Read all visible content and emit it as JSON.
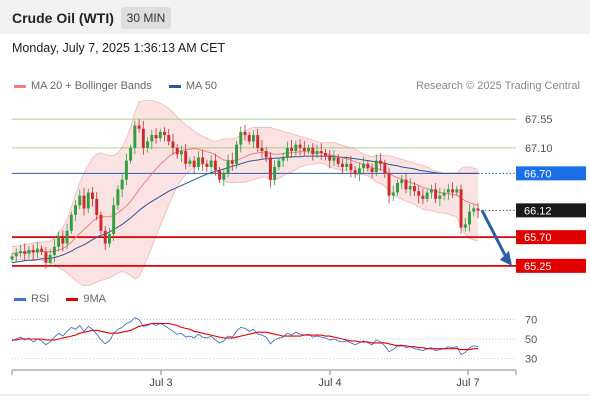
{
  "header": {
    "title": "Crude Oil (WTI)",
    "timeframe": "30 MIN"
  },
  "date_text": "Monday, July 7, 2025 1:36:13 AM CET",
  "legend": {
    "ma20_bb": {
      "label": "MA 20 + Bollinger Bands",
      "color": "#f08080"
    },
    "ma50": {
      "label": "MA 50",
      "color": "#2f5597"
    }
  },
  "credit": "Research © 2025 Trading Central",
  "rsi_legend": {
    "rsi": {
      "label": "RSI",
      "color": "#4472c4"
    },
    "ma9": {
      "label": "9MA",
      "color": "#e00000"
    }
  },
  "chart_data": [
    {
      "type": "line",
      "title": "Crude Oil (WTI)",
      "x_labels": [
        "Jul 3",
        "Jul 4",
        "Jul 7"
      ],
      "ylim": [
        64.95,
        67.85
      ],
      "levels": [
        {
          "value": 67.55,
          "label": "67.55",
          "kind": "resistance",
          "color": "#8fc46e"
        },
        {
          "value": 67.1,
          "label": "67.10",
          "kind": "resistance",
          "color": "#8fc46e"
        },
        {
          "value": 66.7,
          "label": "66.70",
          "kind": "pivot",
          "color": "#1f5fbf"
        },
        {
          "value": 66.12,
          "label": "66.12",
          "kind": "last",
          "color": "#333333"
        },
        {
          "value": 65.7,
          "label": "65.70",
          "kind": "support",
          "color": "#e00000"
        },
        {
          "value": 65.25,
          "label": "65.25",
          "kind": "support",
          "color": "#e00000"
        }
      ],
      "price": [
        65.4,
        65.45,
        65.48,
        65.44,
        65.5,
        65.46,
        65.52,
        65.47,
        65.3,
        65.42,
        65.55,
        65.72,
        65.6,
        65.8,
        66.05,
        66.2,
        66.35,
        66.15,
        66.4,
        66.3,
        66.05,
        65.8,
        65.6,
        65.75,
        66.2,
        66.45,
        66.6,
        66.9,
        67.1,
        67.45,
        67.4,
        67.1,
        67.2,
        67.3,
        67.25,
        67.35,
        67.3,
        67.2,
        67.1,
        67.0,
        67.05,
        66.85,
        66.9,
        66.8,
        66.95,
        66.85,
        66.8,
        66.9,
        66.75,
        66.6,
        66.7,
        66.9,
        66.85,
        67.15,
        67.35,
        67.3,
        67.2,
        67.3,
        67.1,
        67.05,
        66.95,
        66.6,
        66.8,
        66.9,
        66.95,
        67.1,
        67.05,
        67.15,
        67.1,
        67.05,
        67.1,
        67.0,
        67.05,
        67.02,
        66.98,
        66.9,
        66.95,
        66.85,
        66.8,
        66.85,
        66.75,
        66.7,
        66.78,
        66.85,
        66.78,
        66.72,
        66.9,
        66.85,
        66.7,
        66.35,
        66.4,
        66.55,
        66.6,
        66.45,
        66.5,
        66.42,
        66.35,
        66.3,
        66.4,
        66.45,
        66.3,
        66.35,
        66.4,
        66.45,
        66.4,
        66.45,
        65.85,
        65.9,
        66.1,
        66.15,
        66.12
      ],
      "ma20": [
        65.45,
        65.45,
        65.46,
        65.46,
        65.47,
        65.47,
        65.48,
        65.48,
        65.47,
        65.47,
        65.48,
        65.5,
        65.52,
        65.56,
        65.62,
        65.69,
        65.76,
        65.82,
        65.88,
        65.95,
        66.0,
        66.02,
        66.02,
        66.02,
        66.04,
        66.08,
        66.13,
        66.19,
        66.26,
        66.35,
        66.45,
        66.53,
        66.61,
        66.69,
        66.77,
        66.84,
        66.9,
        66.96,
        67.01,
        67.04,
        67.06,
        67.07,
        67.08,
        67.09,
        67.08,
        67.06,
        67.04,
        67.02,
        66.99,
        66.95,
        66.91,
        66.9,
        66.9,
        66.91,
        66.93,
        66.96,
        66.99,
        67.01,
        67.02,
        67.03,
        67.03,
        67.01,
        67.0,
        67.0,
        67.01,
        67.02,
        67.02,
        67.03,
        67.04,
        67.04,
        67.04,
        67.03,
        67.03,
        67.02,
        67.01,
        66.99,
        66.98,
        66.96,
        66.94,
        66.93,
        66.91,
        66.88,
        66.86,
        66.84,
        66.82,
        66.79,
        66.77,
        66.76,
        66.74,
        66.7,
        66.66,
        66.63,
        66.61,
        66.58,
        66.56,
        66.54,
        66.51,
        66.48,
        66.46,
        66.44,
        66.42,
        66.4,
        66.39,
        66.38,
        66.37,
        66.36,
        66.31,
        66.27,
        66.24,
        66.22,
        66.2
      ],
      "bb_upper": [
        65.55,
        65.56,
        65.57,
        65.58,
        65.6,
        65.61,
        65.62,
        65.62,
        65.63,
        65.64,
        65.68,
        65.78,
        65.85,
        65.98,
        66.16,
        66.36,
        66.55,
        66.7,
        66.82,
        66.94,
        67.0,
        67.02,
        67.0,
        66.98,
        66.98,
        67.02,
        67.1,
        67.24,
        67.42,
        67.66,
        67.82,
        67.84,
        67.84,
        67.84,
        67.82,
        67.8,
        67.76,
        67.72,
        67.66,
        67.58,
        67.52,
        67.46,
        67.42,
        67.36,
        67.32,
        67.28,
        67.25,
        67.22,
        67.2,
        67.22,
        67.24,
        67.24,
        67.24,
        67.26,
        67.3,
        67.36,
        67.4,
        67.42,
        67.42,
        67.42,
        67.42,
        67.42,
        67.4,
        67.38,
        67.36,
        67.34,
        67.32,
        67.3,
        67.28,
        67.26,
        67.24,
        67.22,
        67.2,
        67.18,
        67.18,
        67.18,
        67.18,
        67.16,
        67.14,
        67.12,
        67.1,
        67.08,
        67.04,
        67.0,
        66.98,
        66.96,
        66.98,
        66.98,
        66.98,
        66.98,
        66.96,
        66.94,
        66.92,
        66.9,
        66.88,
        66.86,
        66.84,
        66.82,
        66.8,
        66.76,
        66.74,
        66.72,
        66.7,
        66.7,
        66.7,
        66.7,
        66.78,
        66.8,
        66.8,
        66.78,
        66.76
      ],
      "bb_lower": [
        65.35,
        65.34,
        65.35,
        65.34,
        65.34,
        65.33,
        65.34,
        65.34,
        65.31,
        65.3,
        65.28,
        65.22,
        65.19,
        65.14,
        65.08,
        65.02,
        64.97,
        64.94,
        64.94,
        64.96,
        65.0,
        65.02,
        65.04,
        65.06,
        65.1,
        65.14,
        65.16,
        65.14,
        65.1,
        65.04,
        65.08,
        65.22,
        65.38,
        65.54,
        65.72,
        65.88,
        66.04,
        66.2,
        66.36,
        66.5,
        66.6,
        66.68,
        66.74,
        66.82,
        66.84,
        66.84,
        66.83,
        66.82,
        66.78,
        66.68,
        66.58,
        66.56,
        66.56,
        66.56,
        66.56,
        66.56,
        66.58,
        66.6,
        66.62,
        66.64,
        66.64,
        66.6,
        66.6,
        66.62,
        66.66,
        66.7,
        66.72,
        66.76,
        66.8,
        66.82,
        66.84,
        66.84,
        66.86,
        66.86,
        66.84,
        66.8,
        66.78,
        66.76,
        66.74,
        66.74,
        66.72,
        66.68,
        66.68,
        66.68,
        66.66,
        66.62,
        66.56,
        66.54,
        66.5,
        66.42,
        66.36,
        66.32,
        66.3,
        66.26,
        66.24,
        66.22,
        66.18,
        66.14,
        66.12,
        66.12,
        66.1,
        66.08,
        66.08,
        66.06,
        66.04,
        66.02,
        65.84,
        65.74,
        65.68,
        65.66,
        65.64
      ],
      "ma50": [
        65.3,
        65.31,
        65.32,
        65.33,
        65.34,
        65.34,
        65.35,
        65.36,
        65.36,
        65.37,
        65.38,
        65.4,
        65.42,
        65.45,
        65.48,
        65.52,
        65.55,
        65.58,
        65.62,
        65.66,
        65.7,
        65.73,
        65.75,
        65.78,
        65.82,
        65.86,
        65.9,
        65.95,
        66.0,
        66.06,
        66.12,
        66.17,
        66.22,
        66.26,
        66.3,
        66.34,
        66.38,
        66.42,
        66.45,
        66.48,
        66.51,
        66.54,
        66.57,
        66.6,
        66.63,
        66.66,
        66.69,
        66.71,
        66.73,
        66.75,
        66.77,
        66.79,
        66.81,
        66.83,
        66.85,
        66.87,
        66.89,
        66.9,
        66.91,
        66.92,
        66.93,
        66.93,
        66.94,
        66.94,
        66.95,
        66.95,
        66.96,
        66.96,
        66.96,
        66.97,
        66.97,
        66.97,
        66.97,
        66.97,
        66.97,
        66.97,
        66.96,
        66.96,
        66.95,
        66.95,
        66.94,
        66.93,
        66.92,
        66.91,
        66.9,
        66.89,
        66.88,
        66.87,
        66.86,
        66.84,
        66.83,
        66.82,
        66.8,
        66.79,
        66.78,
        66.77,
        66.75,
        66.74,
        66.73,
        66.72,
        66.71,
        66.7,
        66.7,
        66.7,
        66.7,
        66.7,
        66.7,
        66.7,
        66.7,
        66.7,
        66.7
      ],
      "forecast_arrow": {
        "from": 66.12,
        "to": 65.25
      }
    },
    {
      "type": "line",
      "title": "RSI",
      "yticks": [
        30,
        50,
        70
      ],
      "ylim": [
        20,
        80
      ],
      "series": [
        {
          "name": "RSI",
          "color": "#4472c4",
          "values": [
            48,
            50,
            52,
            49,
            51,
            47,
            50,
            48,
            44,
            47,
            52,
            56,
            53,
            58,
            62,
            60,
            64,
            58,
            63,
            60,
            55,
            49,
            45,
            48,
            56,
            60,
            62,
            66,
            68,
            72,
            70,
            63,
            64,
            66,
            64,
            66,
            64,
            61,
            58,
            55,
            56,
            52,
            53,
            51,
            55,
            52,
            51,
            53,
            49,
            46,
            48,
            53,
            52,
            58,
            62,
            61,
            58,
            60,
            55,
            54,
            52,
            45,
            49,
            51,
            52,
            56,
            54,
            57,
            55,
            54,
            55,
            52,
            53,
            52,
            51,
            49,
            50,
            48,
            47,
            48,
            46,
            44,
            46,
            48,
            46,
            44,
            49,
            47,
            43,
            37,
            39,
            43,
            44,
            41,
            42,
            40,
            39,
            38,
            40,
            41,
            38,
            39,
            40,
            42,
            41,
            42,
            34,
            36,
            41,
            43,
            42
          ]
        },
        {
          "name": "9MA",
          "color": "#e00000",
          "values": [
            49,
            49,
            50,
            50,
            50,
            50,
            50,
            50,
            49,
            49,
            49,
            50,
            51,
            52,
            53,
            54,
            56,
            57,
            58,
            59,
            59,
            58,
            57,
            56,
            56,
            56,
            57,
            58,
            59,
            61,
            63,
            64,
            65,
            66,
            66,
            66,
            66,
            66,
            65,
            64,
            62,
            61,
            60,
            58,
            57,
            56,
            55,
            54,
            53,
            52,
            51,
            51,
            51,
            52,
            53,
            54,
            55,
            56,
            57,
            57,
            57,
            56,
            55,
            54,
            53,
            53,
            53,
            53,
            53,
            54,
            54,
            54,
            54,
            54,
            53,
            53,
            52,
            51,
            50,
            49,
            48,
            48,
            47,
            47,
            47,
            46,
            46,
            46,
            46,
            45,
            44,
            43,
            43,
            43,
            42,
            42,
            41,
            41,
            40,
            40,
            40,
            40,
            40,
            40,
            40,
            40,
            39,
            39,
            39,
            40,
            40
          ]
        }
      ]
    }
  ]
}
